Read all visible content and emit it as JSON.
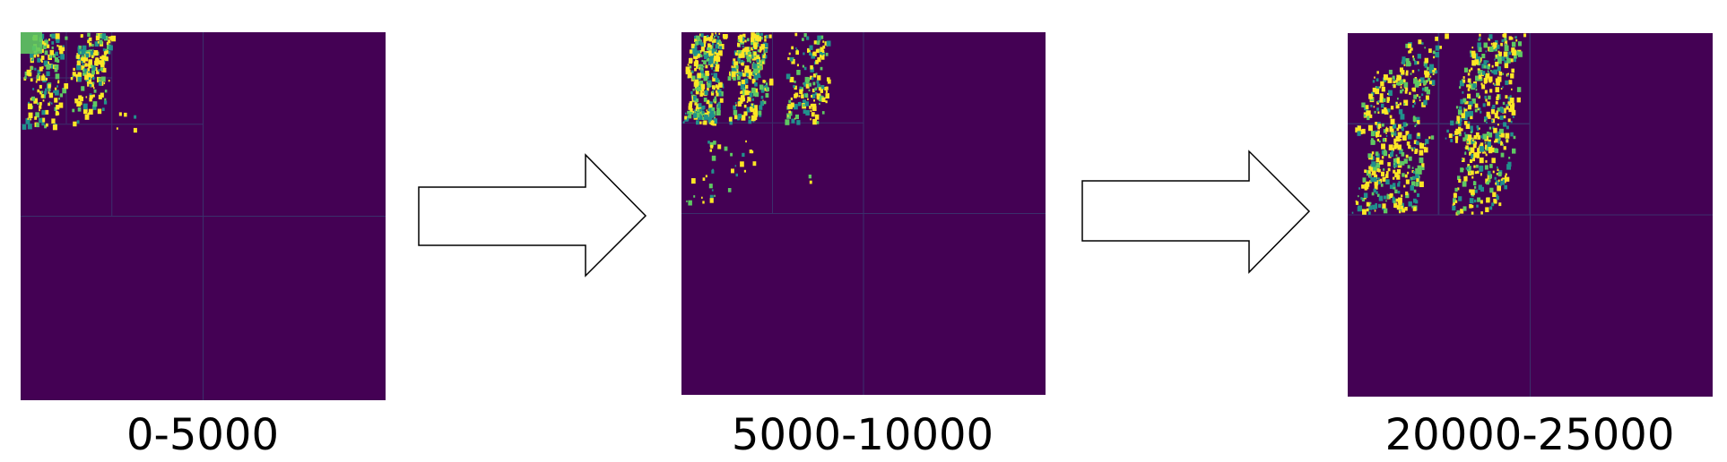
{
  "colors": {
    "background": "#440154",
    "gridline": "#3b2f6b",
    "speckle_low": "#21918c",
    "speckle_mid": "#5ec962",
    "speckle_high": "#fde725"
  },
  "panels": [
    {
      "caption": "0-5000"
    },
    {
      "caption": "5000-10000"
    },
    {
      "caption": "20000-25000"
    }
  ],
  "arrows": [
    {
      "icon": "right-arrow-icon"
    },
    {
      "icon": "right-arrow-icon"
    }
  ]
}
